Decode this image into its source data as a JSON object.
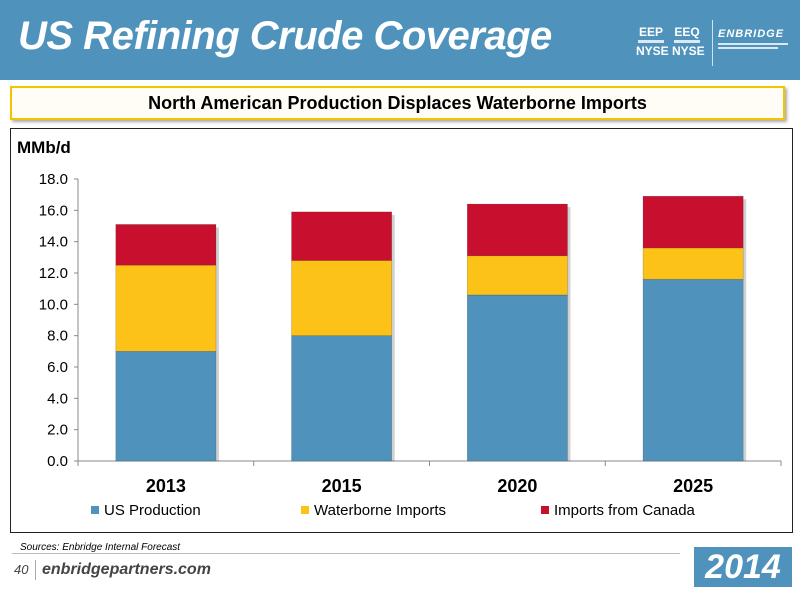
{
  "header": {
    "title": "US Refining Crude Coverage",
    "tickers": [
      {
        "symbol": "EEP",
        "exchange": "NYSE"
      },
      {
        "symbol": "EEQ",
        "exchange": "NYSE"
      }
    ],
    "logo_text": "ENBRIDGE"
  },
  "subtitle": "North American Production Displaces Waterborne Imports",
  "colors": {
    "header_bg": "#4f93bd",
    "us_production": "#4f93bd",
    "waterborne_imports": "#fcc217",
    "imports_canada": "#c8102e",
    "subtitle_border": "#f5c400"
  },
  "chart_data": {
    "type": "bar",
    "stacked": true,
    "ylabel": "MMb/d",
    "ylim": [
      0,
      18
    ],
    "yticks": [
      "0.0",
      "2.0",
      "4.0",
      "6.0",
      "8.0",
      "10.0",
      "12.0",
      "14.0",
      "16.0",
      "18.0"
    ],
    "categories": [
      "2013",
      "2015",
      "2020",
      "2025"
    ],
    "series": [
      {
        "name": "US Production",
        "color": "#4f93bd",
        "values": [
          7.0,
          8.0,
          10.6,
          11.6
        ]
      },
      {
        "name": "Waterborne Imports",
        "color": "#fcc217",
        "values": [
          5.5,
          4.8,
          2.5,
          2.0
        ]
      },
      {
        "name": "Imports from Canada",
        "color": "#c8102e",
        "values": [
          2.6,
          3.1,
          3.3,
          3.3
        ]
      }
    ],
    "legend_position": "bottom",
    "grid": false
  },
  "footer": {
    "source": "Sources: Enbridge Internal Forecast",
    "page_number": "40",
    "website": "enbridgepartners.com",
    "year": "2014"
  }
}
